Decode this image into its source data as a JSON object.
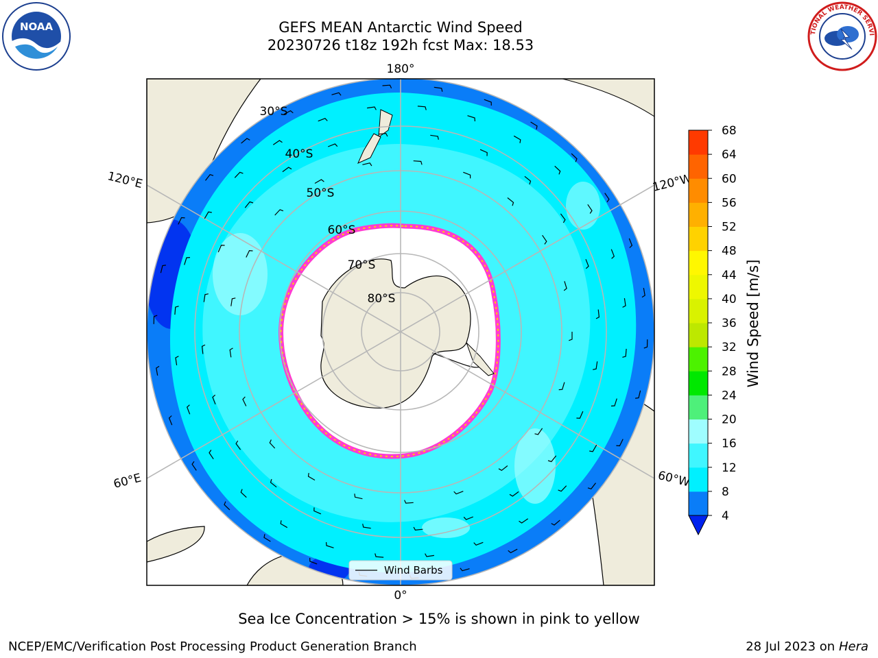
{
  "title_line1": "GEFS MEAN Antarctic Wind Speed",
  "title_line2": "20230726 t18z 192h fcst   Max: 18.53",
  "lon_labels": {
    "top": "180°",
    "bottom": "0°",
    "upper_left": "120°E",
    "upper_right": "120°W",
    "lower_left": "60°E",
    "lower_right": "60°W"
  },
  "lat_labels": [
    "30°S",
    "40°S",
    "50°S",
    "60°S",
    "70°S",
    "80°S"
  ],
  "legend": {
    "label": "Wind Barbs"
  },
  "colorbar": {
    "label": "Wind Speed [m/s]",
    "ticks": [
      "4",
      "8",
      "12",
      "16",
      "20",
      "24",
      "28",
      "32",
      "36",
      "40",
      "44",
      "48",
      "52",
      "56",
      "60",
      "64",
      "68"
    ],
    "colors": [
      "#0a7df8",
      "#00f0ff",
      "#40f6ff",
      "#9ffdff",
      "#4ef07a",
      "#00e800",
      "#4cf200",
      "#bde800",
      "#d9f200",
      "#eef700",
      "#fff700",
      "#ffd200",
      "#ffb000",
      "#ff8c00",
      "#ff6400",
      "#ff3a00"
    ],
    "under_color": "#0022ee"
  },
  "caption": "Sea Ice Concentration > 15% is shown in pink to yellow",
  "footer_left": "NCEP/EMC/Verification Post Processing Product Generation Branch",
  "footer_date": "28 Jul 2023 on ",
  "footer_machine": "Hera",
  "logos": {
    "left": "NOAA",
    "right_text": "NATIONAL WEATHER SERVICE"
  }
}
